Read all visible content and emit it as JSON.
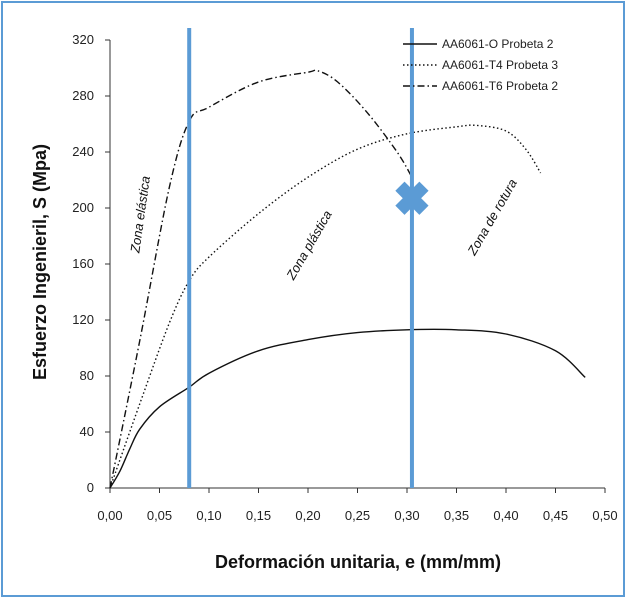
{
  "chart_data": {
    "type": "line",
    "xlabel": "Deformación unitaria, e (mm/mm)",
    "ylabel": "Esfuerzo Ingenieril, S (Mpa)",
    "xlim": [
      0,
      0.5
    ],
    "ylim": [
      0,
      320
    ],
    "x_ticks": [
      "0,00",
      "0,05",
      "0,10",
      "0,15",
      "0,20",
      "0,25",
      "0,30",
      "0,35",
      "0,40",
      "0,45",
      "0,50"
    ],
    "y_ticks": [
      "0",
      "40",
      "80",
      "120",
      "160",
      "200",
      "240",
      "280",
      "320"
    ],
    "grid": false,
    "legend_position": "top-right",
    "series": [
      {
        "name": "AA6061-O Probeta 2",
        "style": "solid",
        "points": [
          [
            0,
            0
          ],
          [
            0.01,
            12
          ],
          [
            0.02,
            28
          ],
          [
            0.03,
            42
          ],
          [
            0.05,
            58
          ],
          [
            0.08,
            72
          ],
          [
            0.1,
            82
          ],
          [
            0.15,
            98
          ],
          [
            0.2,
            106
          ],
          [
            0.25,
            111
          ],
          [
            0.3,
            113
          ],
          [
            0.35,
            113
          ],
          [
            0.4,
            110
          ],
          [
            0.45,
            98
          ],
          [
            0.48,
            79
          ]
        ]
      },
      {
        "name": "AA6061-T4 Probeta 3",
        "style": "dotted",
        "points": [
          [
            0,
            0
          ],
          [
            0.03,
            60
          ],
          [
            0.06,
            118
          ],
          [
            0.08,
            148
          ],
          [
            0.1,
            165
          ],
          [
            0.15,
            196
          ],
          [
            0.2,
            222
          ],
          [
            0.25,
            242
          ],
          [
            0.3,
            253
          ],
          [
            0.35,
            258
          ],
          [
            0.37,
            259
          ],
          [
            0.4,
            255
          ],
          [
            0.42,
            242
          ],
          [
            0.435,
            225
          ]
        ]
      },
      {
        "name": "AA6061-T6 Probeta 2",
        "style": "dash-dot",
        "points": [
          [
            0,
            0
          ],
          [
            0.03,
            105
          ],
          [
            0.06,
            215
          ],
          [
            0.08,
            262
          ],
          [
            0.1,
            272
          ],
          [
            0.15,
            290
          ],
          [
            0.2,
            297
          ],
          [
            0.21,
            298
          ],
          [
            0.23,
            290
          ],
          [
            0.26,
            268
          ],
          [
            0.29,
            240
          ],
          [
            0.305,
            222
          ]
        ]
      }
    ],
    "vertical_lines": [
      0.08,
      0.305
    ],
    "fracture_marker": [
      0.305,
      207
    ],
    "zone_labels": [
      "Zona elástica",
      "Zona plástica",
      "Zona de rotura"
    ],
    "colors": {
      "vertical_lines": "#5b9bd5",
      "marker": "#5b9bd5",
      "curves": "#111111"
    }
  }
}
